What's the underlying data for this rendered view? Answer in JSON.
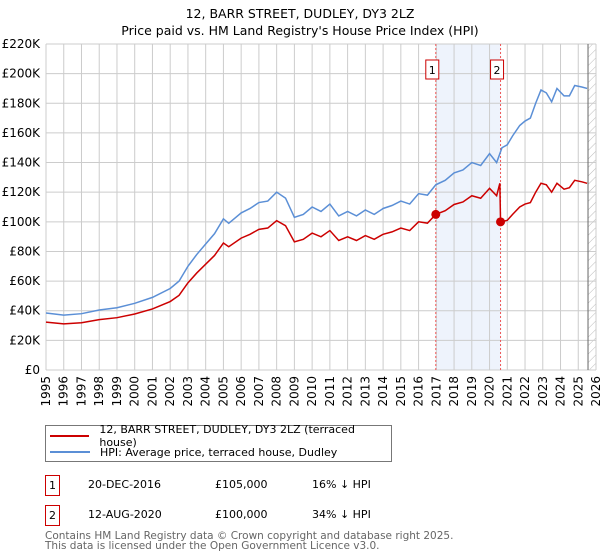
{
  "chart_data": {
    "type": "line",
    "title": "12, BARR STREET, DUDLEY, DY3 2LZ",
    "subtitle": "Price paid vs. HM Land Registry's House Price Index (HPI)",
    "xlim": [
      1995,
      2026
    ],
    "ylim": [
      0,
      220000
    ],
    "grid": true,
    "yticks": [
      0,
      20000,
      40000,
      60000,
      80000,
      100000,
      120000,
      140000,
      160000,
      180000,
      200000,
      220000
    ],
    "ytick_labels": [
      "£0",
      "£20K",
      "£40K",
      "£60K",
      "£80K",
      "£100K",
      "£120K",
      "£140K",
      "£160K",
      "£180K",
      "£200K",
      "£220K"
    ],
    "xtick_labels": [
      "1995",
      "1996",
      "1997",
      "1998",
      "1999",
      "2000",
      "2001",
      "2002",
      "2003",
      "2004",
      "2005",
      "2006",
      "2007",
      "2008",
      "2009",
      "2010",
      "2011",
      "2012",
      "2013",
      "2014",
      "2015",
      "2016",
      "2017",
      "2018",
      "2019",
      "2020",
      "2021",
      "2022",
      "2023",
      "2024",
      "2025",
      "2026"
    ],
    "shaded_period": [
      2016.97,
      2020.62
    ],
    "forecast_from": 2025.55,
    "series": [
      {
        "name": "12, BARR STREET, DUDLEY, DY3 2LZ (terraced house)",
        "color": "#cc0000",
        "x": [
          1995,
          1996,
          1997,
          1998,
          1999,
          2000,
          2001,
          2002,
          2002.5,
          2003,
          2003.5,
          2004,
          2004.5,
          2005,
          2005.3,
          2006,
          2006.5,
          2007,
          2007.5,
          2008,
          2008.5,
          2009,
          2009.5,
          2010,
          2010.5,
          2011,
          2011.5,
          2012,
          2012.5,
          2013,
          2013.5,
          2014,
          2014.5,
          2015,
          2015.5,
          2016,
          2016.5,
          2016.97,
          2017.5,
          2018,
          2018.5,
          2019,
          2019.5,
          2020,
          2020.4,
          2020.58,
          2020.62,
          2021,
          2021.3,
          2021.7,
          2022,
          2022.3,
          2022.6,
          2022.9,
          2023.2,
          2023.5,
          2023.8,
          2024.2,
          2024.5,
          2024.8,
          2025.2,
          2025.5
        ],
        "y": [
          32300,
          31100,
          31900,
          34000,
          35300,
          37800,
          41200,
          46200,
          50400,
          58800,
          65500,
          71400,
          77300,
          85700,
          83200,
          89000,
          91600,
          94900,
          95800,
          100800,
          97400,
          86500,
          88200,
          92400,
          89900,
          94100,
          87400,
          89900,
          87400,
          90700,
          88200,
          91600,
          93200,
          95800,
          94100,
          100000,
          99100,
          105000,
          107500,
          111700,
          113400,
          117600,
          115900,
          122600,
          117600,
          126000,
          100000,
          101000,
          105000,
          110000,
          112000,
          113000,
          120000,
          126000,
          125000,
          120000,
          126000,
          122000,
          123000,
          128000,
          127000,
          126000
        ]
      },
      {
        "name": "HPI: Average price, terraced house, Dudley",
        "color": "#5b8fd6",
        "x": [
          1995,
          1996,
          1997,
          1998,
          1999,
          2000,
          2001,
          2002,
          2002.5,
          2003,
          2003.5,
          2004,
          2004.5,
          2005,
          2005.3,
          2006,
          2006.5,
          2007,
          2007.5,
          2008,
          2008.5,
          2009,
          2009.5,
          2010,
          2010.5,
          2011,
          2011.5,
          2012,
          2012.5,
          2013,
          2013.5,
          2014,
          2014.5,
          2015,
          2015.5,
          2016,
          2016.5,
          2016.97,
          2017.5,
          2018,
          2018.5,
          2019,
          2019.5,
          2020,
          2020.4,
          2020.7,
          2021,
          2021.3,
          2021.7,
          2022,
          2022.3,
          2022.6,
          2022.9,
          2023.2,
          2023.5,
          2023.8,
          2024.2,
          2024.5,
          2024.8,
          2025.2,
          2025.5
        ],
        "y": [
          38500,
          37000,
          38000,
          40500,
          42000,
          45000,
          49000,
          55000,
          60000,
          70000,
          78000,
          85000,
          92000,
          102000,
          99000,
          106000,
          109000,
          113000,
          114000,
          120000,
          116000,
          103000,
          105000,
          110000,
          107000,
          112000,
          104000,
          107000,
          104000,
          108000,
          105000,
          109000,
          111000,
          114000,
          112000,
          119000,
          118000,
          125000,
          128000,
          133000,
          135000,
          140000,
          138000,
          146000,
          140000,
          150000,
          152000,
          158000,
          165000,
          168000,
          170000,
          180000,
          189000,
          187000,
          181000,
          190000,
          185000,
          185000,
          192000,
          191000,
          190000
        ]
      }
    ],
    "sales": [
      {
        "label": "1",
        "date": "20-DEC-2016",
        "x": 2016.97,
        "price": 105000,
        "price_text": "£105,000",
        "hpi_diff": "16% ↓ HPI"
      },
      {
        "label": "2",
        "date": "12-AUG-2020",
        "x": 2020.62,
        "price": 100000,
        "price_text": "£100,000",
        "hpi_diff": "34% ↓ HPI"
      }
    ]
  },
  "footer": {
    "line1": "Contains HM Land Registry data © Crown copyright and database right 2025.",
    "line2": "This data is licensed under the Open Government Licence v3.0."
  }
}
